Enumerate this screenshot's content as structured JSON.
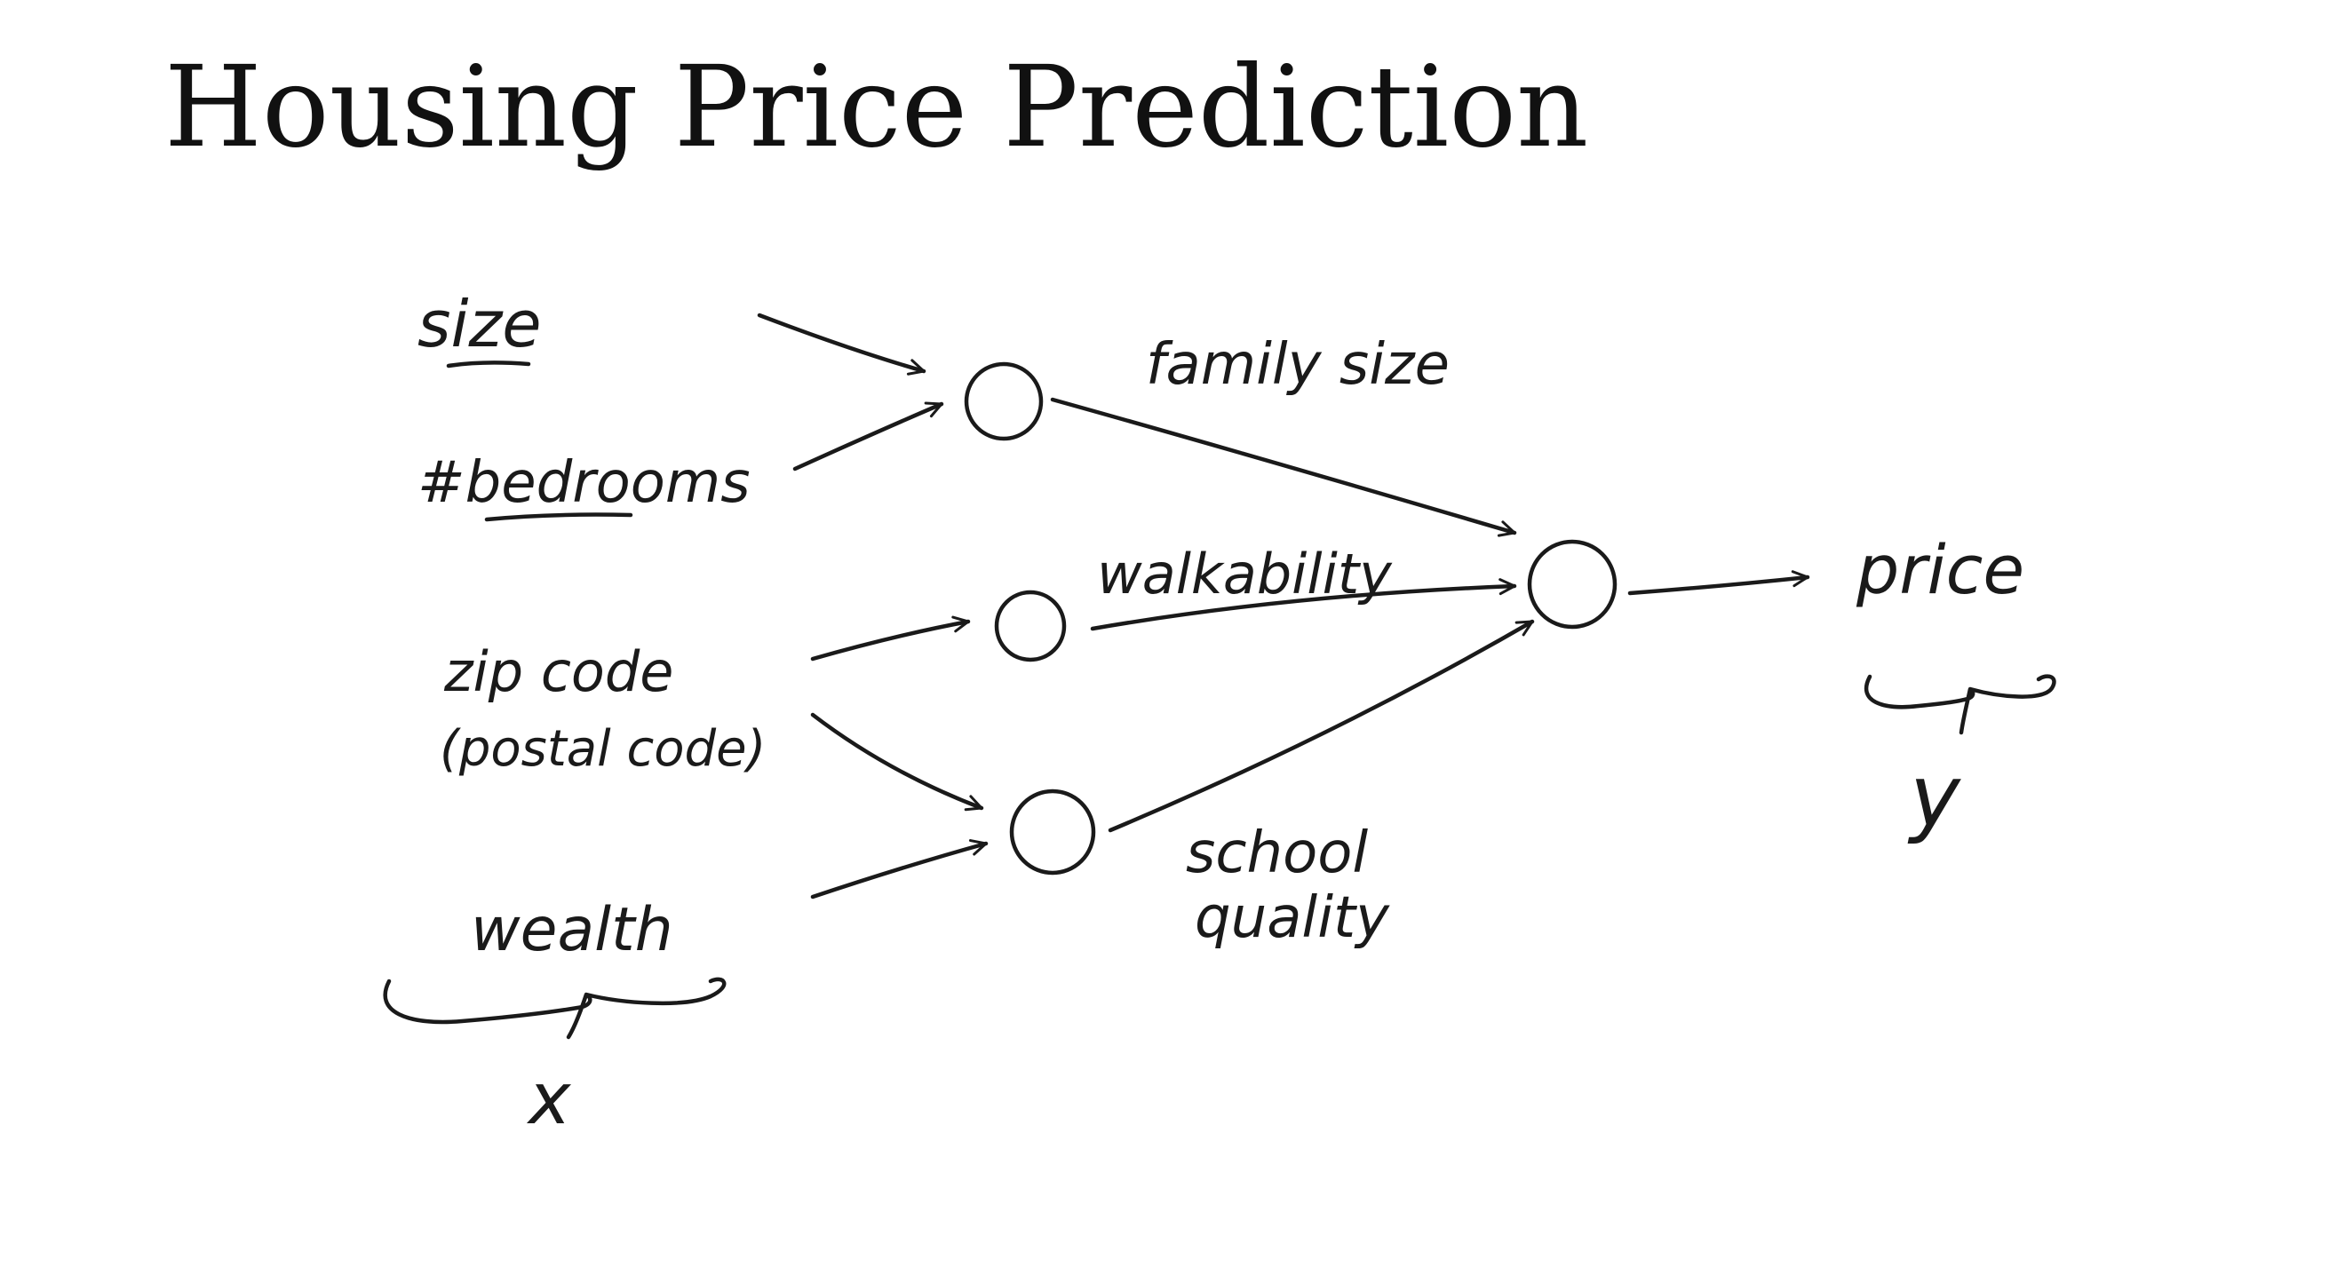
{
  "title": "Housing Price Prediction",
  "inputs": {
    "size": "size",
    "bedrooms": "#bedrooms",
    "zip_code_line1": "zip code",
    "zip_code_line2": "(postal code)",
    "wealth": "wealth",
    "x_label": "x"
  },
  "hidden": {
    "family_size": "family size",
    "walkability": "walkability",
    "school_quality_line1": "school",
    "school_quality_line2": "quality"
  },
  "output": {
    "price": "price",
    "y_label": "y"
  },
  "colors": {
    "ink": "#1a1a1a",
    "background": "#ffffff"
  }
}
